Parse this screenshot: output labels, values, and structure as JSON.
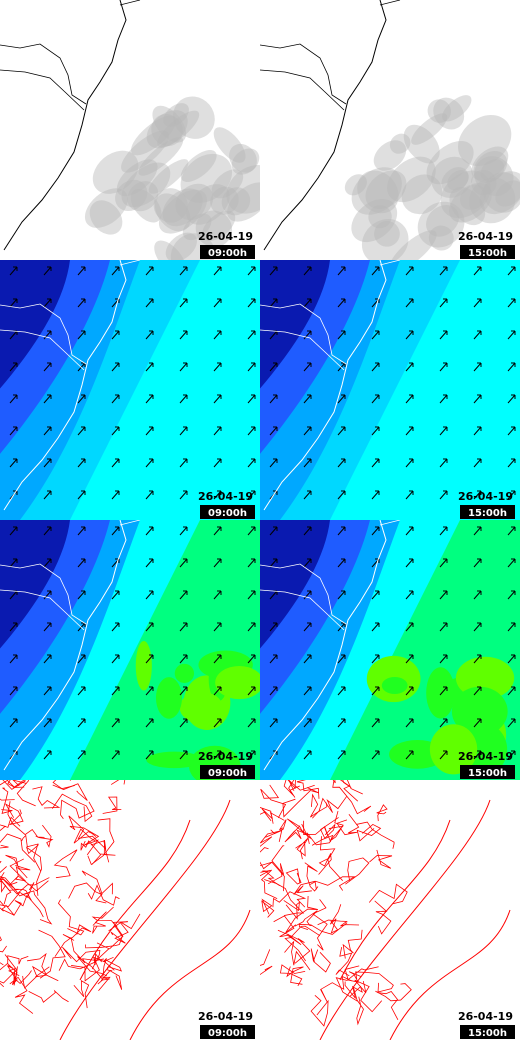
{
  "panels": [
    {
      "date": "26-04-19",
      "time": "09:00h"
    },
    {
      "date": "26-04-19",
      "time": "15:00h"
    },
    {
      "date": "26-04-19",
      "time": "09:00h"
    },
    {
      "date": "26-04-19",
      "time": "15:00h"
    },
    {
      "date": "26-04-19",
      "time": "09:00h"
    },
    {
      "date": "26-04-19",
      "time": "15:00h"
    },
    {
      "date": "26-04-19",
      "time": "09:00h"
    },
    {
      "date": "26-04-19",
      "time": "15:00h"
    }
  ]
}
